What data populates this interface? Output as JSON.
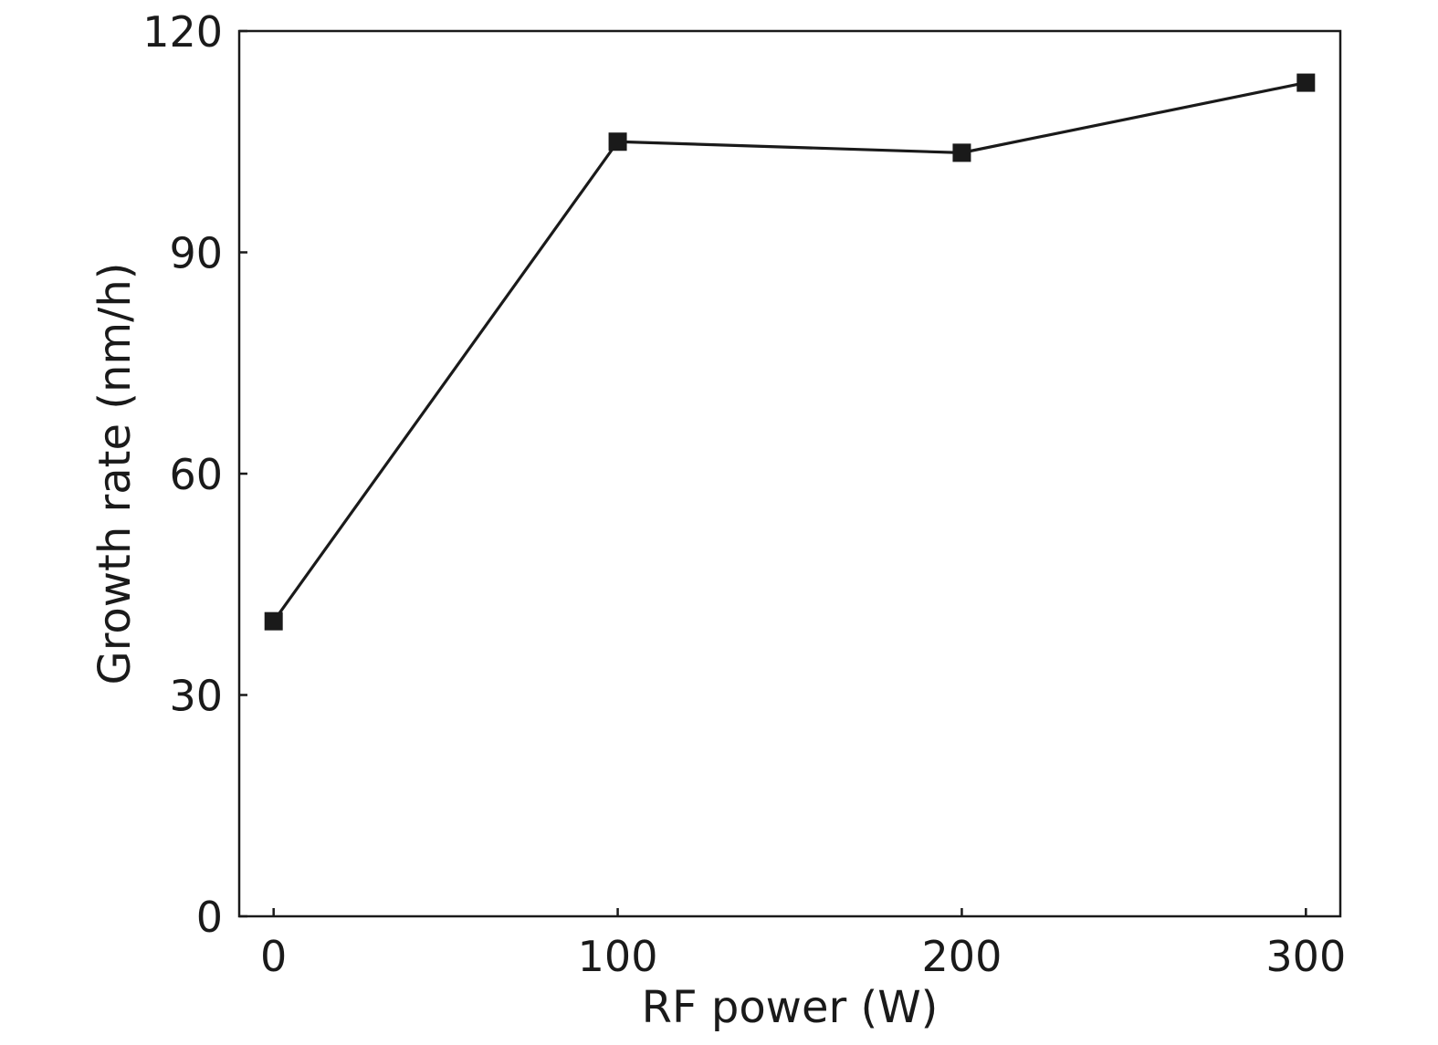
{
  "chart_data": {
    "type": "line",
    "title": "",
    "xlabel": "RF power (W)",
    "ylabel": "Growth rate (nm/h)",
    "x": [
      0,
      100,
      200,
      300
    ],
    "series": [
      {
        "values": [
          40,
          105,
          103.5,
          113
        ],
        "marker": "square",
        "color": "#1a1a1a"
      }
    ],
    "xlim": [
      -10,
      310
    ],
    "ylim": [
      0,
      120
    ],
    "xticks": [
      0,
      100,
      200,
      300
    ],
    "xtick_labels": [
      "0",
      "100",
      "200",
      "300"
    ],
    "yticks": [
      0,
      30,
      60,
      90,
      120
    ],
    "ytick_labels": [
      "0",
      "30",
      "60",
      "90",
      "120"
    ],
    "grid": false,
    "legend": "none"
  }
}
